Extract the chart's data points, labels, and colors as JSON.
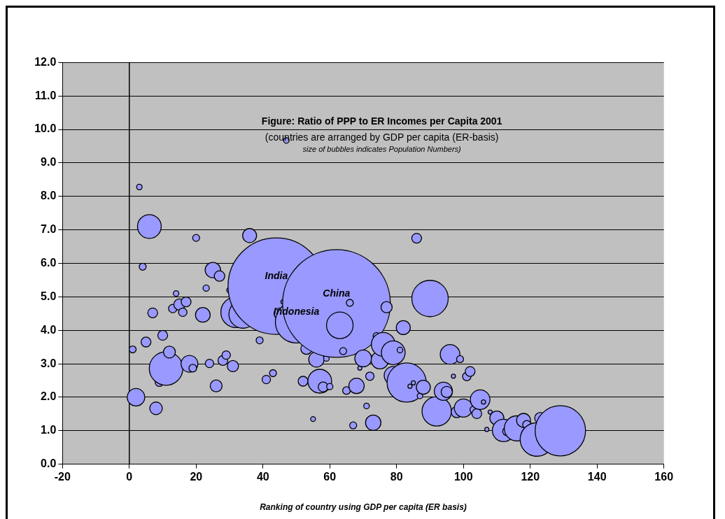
{
  "chart_data": {
    "type": "bubble",
    "title": "Figure: Ratio of PPP to ER Incomes per Capita 2001",
    "subtitle": "(countries are arranged by GDP per capita (ER-basis)",
    "xlabel": "Ranking of country using GDP per capita (ER basis)",
    "annotations": [
      "size of bubbles indicates Population Numbers)",
      {
        "text": "India",
        "x": 44,
        "y": 5.32
      },
      {
        "text": "China",
        "x": 62,
        "y": 4.8
      },
      {
        "text": "Indonesia",
        "x": 50,
        "y": 4.25
      }
    ],
    "color": "#9999ff",
    "x": [
      1,
      2,
      3,
      4,
      5,
      6,
      7,
      8,
      9,
      10,
      11,
      12,
      13,
      14,
      15,
      16,
      17,
      18,
      19,
      20,
      22,
      23,
      24,
      25,
      26,
      27,
      28,
      29,
      30,
      31,
      32,
      34,
      36,
      39,
      41,
      43,
      44,
      45,
      46,
      47,
      50,
      52,
      53,
      55,
      56,
      57,
      58,
      59,
      60,
      62,
      63,
      64,
      65,
      66,
      67,
      68,
      69,
      70,
      71,
      72,
      73,
      74,
      75,
      76,
      77,
      79,
      79,
      81,
      82,
      83,
      84,
      85,
      86,
      87,
      88,
      90,
      92,
      94,
      95,
      96,
      97,
      98,
      99,
      100,
      101,
      102,
      103,
      104,
      105,
      106,
      107,
      108,
      110,
      112,
      113,
      116,
      118,
      119,
      122,
      123,
      129
    ],
    "values": [
      3.43,
      2.0,
      8.28,
      5.9,
      3.65,
      7.1,
      4.52,
      1.67,
      2.45,
      3.85,
      2.86,
      3.35,
      4.65,
      5.1,
      4.77,
      4.54,
      4.85,
      3.0,
      2.87,
      6.76,
      4.46,
      5.26,
      3.01,
      5.8,
      2.34,
      5.62,
      3.1,
      3.26,
      5.2,
      2.93,
      4.54,
      4.48,
      6.83,
      3.7,
      2.53,
      2.72,
      5.32,
      4.5,
      4.85,
      9.67,
      4.25,
      2.48,
      3.45,
      1.35,
      3.13,
      2.48,
      2.31,
      3.16,
      2.32,
      4.8,
      4.15,
      3.38,
      2.2,
      4.82,
      1.16,
      2.34,
      2.87,
      3.16,
      1.74,
      2.63,
      1.24,
      3.83,
      3.11,
      3.58,
      4.69,
      3.33,
      2.65,
      3.41,
      4.08,
      2.44,
      2.33,
      2.43,
      6.75,
      2.04,
      2.3,
      4.95,
      1.58,
      2.18,
      2.16,
      3.28,
      2.63,
      1.56,
      3.14,
      1.68,
      2.62,
      2.77,
      1.63,
      1.51,
      1.93,
      1.86,
      1.04,
      1.56,
      1.38,
      1.01,
      0.98,
      1.07,
      1.31,
      1.18,
      0.74,
      1.38,
      1.0
    ],
    "sizes": [
      0.0042,
      0.0264,
      0.0027,
      0.0042,
      0.0083,
      0.0487,
      0.0083,
      0.0137,
      0.0061,
      0.0083,
      0.0971,
      0.0122,
      0.0061,
      0.0027,
      0.0108,
      0.0061,
      0.0083,
      0.0243,
      0.0051,
      0.0042,
      0.0186,
      0.0034,
      0.0061,
      0.0204,
      0.0122,
      0.0095,
      0.0083,
      0.0061,
      0.0027,
      0.0108,
      0.0816,
      0.0675,
      0.0169,
      0.0042,
      0.0061,
      0.0042,
      0.803,
      0.0108,
      0.0015,
      0.0027,
      0.152,
      0.0083,
      0.0108,
      0.0021,
      0.0204,
      0.0487,
      0.0083,
      0.0027,
      0.0034,
      1,
      0.0609,
      0.0042,
      0.0051,
      0.0042,
      0.0042,
      0.0204,
      0.0015,
      0.0243,
      0.0027,
      0.0061,
      0.0204,
      0.0042,
      0.0264,
      0.0487,
      0.0108,
      0.0487,
      0.0285,
      0.0027,
      0.0169,
      0.132,
      0.0015,
      0.0015,
      0.0083,
      0.0027,
      0.0169,
      0.114,
      0.0744,
      0.0285,
      0.0108,
      0.0331,
      0.0015,
      0.0108,
      0.0042,
      0.0285,
      0.0061,
      0.0083,
      0.0042,
      0.0083,
      0.0331,
      0.0015,
      0.0015,
      0.0015,
      0.0169,
      0.0432,
      0.0061,
      0.0546,
      0.0169,
      0.0061,
      0.0971,
      0.0108,
      0.219
    ],
    "xlim": [
      -20,
      160
    ],
    "xticks": [
      -20,
      0,
      20,
      40,
      60,
      80,
      100,
      120,
      140,
      160
    ],
    "ylim": [
      0,
      12
    ],
    "yticks": [
      {
        "value": 0,
        "label": "0.0"
      },
      {
        "value": 1,
        "label": "1.0"
      },
      {
        "value": 2,
        "label": "2.0"
      },
      {
        "value": 3,
        "label": "3.0"
      },
      {
        "value": 4,
        "label": "4.0"
      },
      {
        "value": 5,
        "label": "5.0"
      },
      {
        "value": 6,
        "label": "6.0"
      },
      {
        "value": 7,
        "label": "7.0"
      },
      {
        "value": 8,
        "label": "8.0"
      },
      {
        "value": 9,
        "label": "9.0"
      },
      {
        "value": 10,
        "label": "10.0"
      },
      {
        "value": 11,
        "label": "11.0"
      },
      {
        "value": 12,
        "label": "12.0"
      }
    ],
    "grid": "y",
    "legend": false,
    "marker": "circle"
  }
}
